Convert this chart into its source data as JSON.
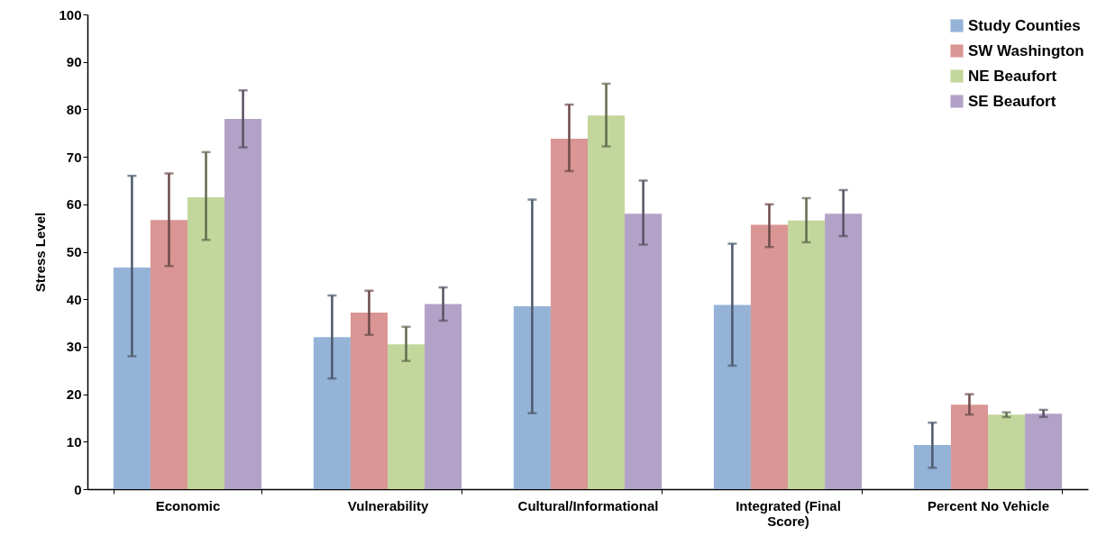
{
  "chart_data": {
    "type": "bar",
    "ylabel": "Stress Level",
    "categories": [
      "Economic",
      "Vulnerability",
      "Cultural/Informational",
      "Integrated (Final Score)",
      "Percent No Vehicle"
    ],
    "ylim": [
      0,
      100
    ],
    "yticks": [
      0,
      10,
      20,
      30,
      40,
      50,
      60,
      70,
      80,
      90,
      100
    ],
    "grid": false,
    "legend": "top right",
    "series": [
      {
        "name": "Study Counties",
        "color": "#95b3d7",
        "values": [
          46.7,
          32,
          38.5,
          38.8,
          9.3
        ],
        "errors": [
          [
            28,
            66
          ],
          [
            23.3,
            40.8
          ],
          [
            16,
            61
          ],
          [
            26,
            51.7
          ],
          [
            4.5,
            14
          ]
        ]
      },
      {
        "name": "SW Washington",
        "color": "#d99694",
        "values": [
          56.7,
          37.2,
          73.8,
          55.7,
          17.8
        ],
        "errors": [
          [
            47,
            66.5
          ],
          [
            32.5,
            41.8
          ],
          [
            67,
            81
          ],
          [
            51,
            60
          ],
          [
            15.7,
            20
          ]
        ]
      },
      {
        "name": "NE Beaufort",
        "color": "#c3d69b",
        "values": [
          61.5,
          30.5,
          78.7,
          56.6,
          15.7
        ],
        "errors": [
          [
            52.5,
            71
          ],
          [
            27,
            34.2
          ],
          [
            72.2,
            85.4
          ],
          [
            52,
            61.3
          ],
          [
            15.2,
            16.2
          ]
        ]
      },
      {
        "name": "SE Beaufort",
        "color": "#b3a2c7",
        "values": [
          78,
          39,
          58,
          58,
          15.9
        ],
        "errors": [
          [
            72,
            84
          ],
          [
            35.5,
            42.5
          ],
          [
            51.5,
            65
          ],
          [
            53.3,
            63
          ],
          [
            15.2,
            16.7
          ]
        ]
      }
    ]
  }
}
